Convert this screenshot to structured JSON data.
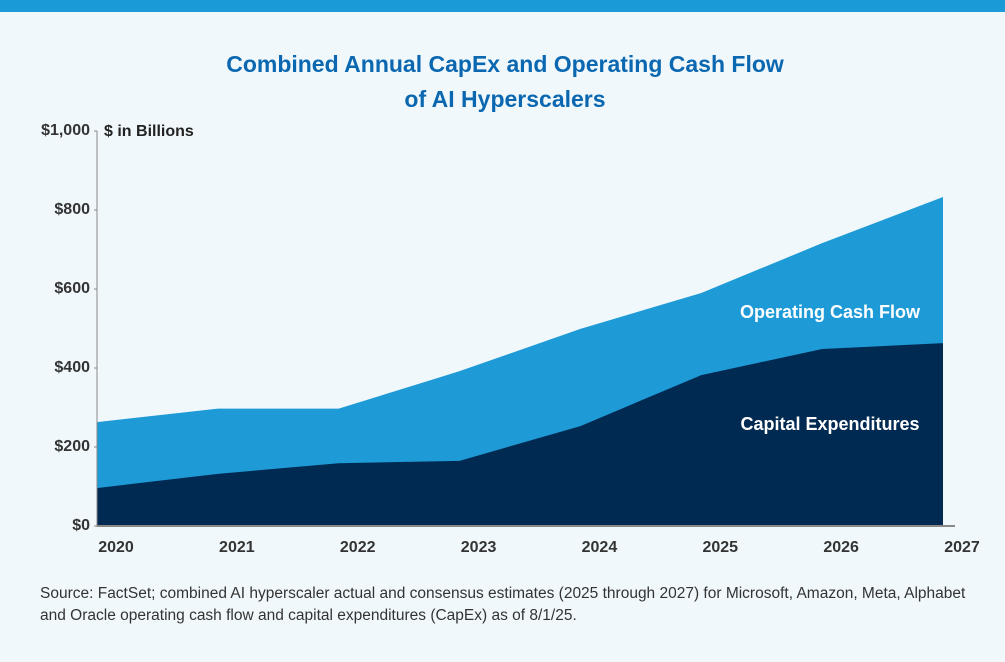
{
  "chart_data": {
    "type": "area",
    "title": [
      "Combined Annual CapEx and Operating Cash Flow",
      "of AI Hyperscalers"
    ],
    "y_axis_label": "$ in Billions",
    "x": [
      2020,
      2021,
      2022,
      2023,
      2024,
      2025,
      2026,
      2027
    ],
    "xlim": [
      2020,
      2027
    ],
    "xticks": [
      2020,
      2021,
      2022,
      2023,
      2024,
      2025,
      2026,
      2027
    ],
    "ylim": [
      0,
      1000
    ],
    "yticks": [
      {
        "value": 0,
        "label": "$0"
      },
      {
        "value": 200,
        "label": "$200"
      },
      {
        "value": 400,
        "label": "$400"
      },
      {
        "value": 600,
        "label": "$600"
      },
      {
        "value": 800,
        "label": "$800"
      },
      {
        "value": 1000,
        "label": "$1,000"
      }
    ],
    "series": [
      {
        "name": "Operating Cash Flow",
        "color": "#1e9ad6",
        "values": [
          263,
          297,
          297,
          392,
          499,
          590,
          716,
          833
        ]
      },
      {
        "name": "Capital Expenditures",
        "color": "#002a52",
        "values": [
          96,
          132,
          159,
          165,
          253,
          382,
          448,
          463
        ]
      }
    ],
    "source": "Source: FactSet; combined AI hyperscaler actual and consensus estimates (2025 through 2027) for Microsoft, Amazon, Meta, Alphabet and Oracle operating cash flow and capital expenditures (CapEx) as of 8/1/25."
  }
}
